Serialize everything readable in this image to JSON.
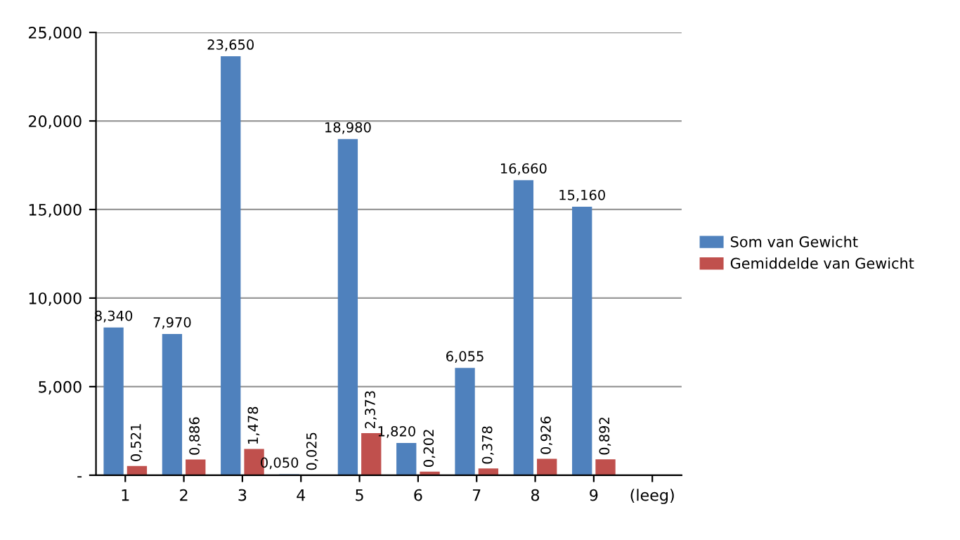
{
  "chart_data": {
    "type": "bar",
    "categories": [
      "1",
      "2",
      "3",
      "4",
      "5",
      "6",
      "7",
      "8",
      "9",
      "(leeg)"
    ],
    "series": [
      {
        "name": "Som van Gewicht",
        "color": "#4f81bd",
        "values": [
          8.34,
          7.97,
          23.65,
          0.05,
          18.98,
          1.82,
          6.055,
          16.66,
          15.16,
          null
        ],
        "value_labels": [
          "8,340",
          "7,970",
          "23,650",
          "0,050",
          "18,980",
          "1,820",
          "6,055",
          "16,660",
          "15,160",
          null
        ]
      },
      {
        "name": "Gemiddelde van Gewicht",
        "color": "#c0504d",
        "values": [
          0.521,
          0.886,
          1.478,
          0.025,
          2.373,
          0.202,
          0.378,
          0.926,
          0.892,
          null
        ],
        "value_labels": [
          "0,521",
          "0,886",
          "1,478",
          "0,025",
          "2,373",
          "0,202",
          "0,378",
          "0,926",
          "0,892",
          null
        ]
      }
    ],
    "ylim": [
      0,
      25
    ],
    "yticks": [
      {
        "value": 0,
        "label": "-"
      },
      {
        "value": 5,
        "label": "5,000"
      },
      {
        "value": 10,
        "label": "10,000"
      },
      {
        "value": 15,
        "label": "15,000"
      },
      {
        "value": 20,
        "label": "20,000"
      },
      {
        "value": 25,
        "label": "25,000"
      }
    ],
    "grid": "y",
    "legend": "right"
  }
}
